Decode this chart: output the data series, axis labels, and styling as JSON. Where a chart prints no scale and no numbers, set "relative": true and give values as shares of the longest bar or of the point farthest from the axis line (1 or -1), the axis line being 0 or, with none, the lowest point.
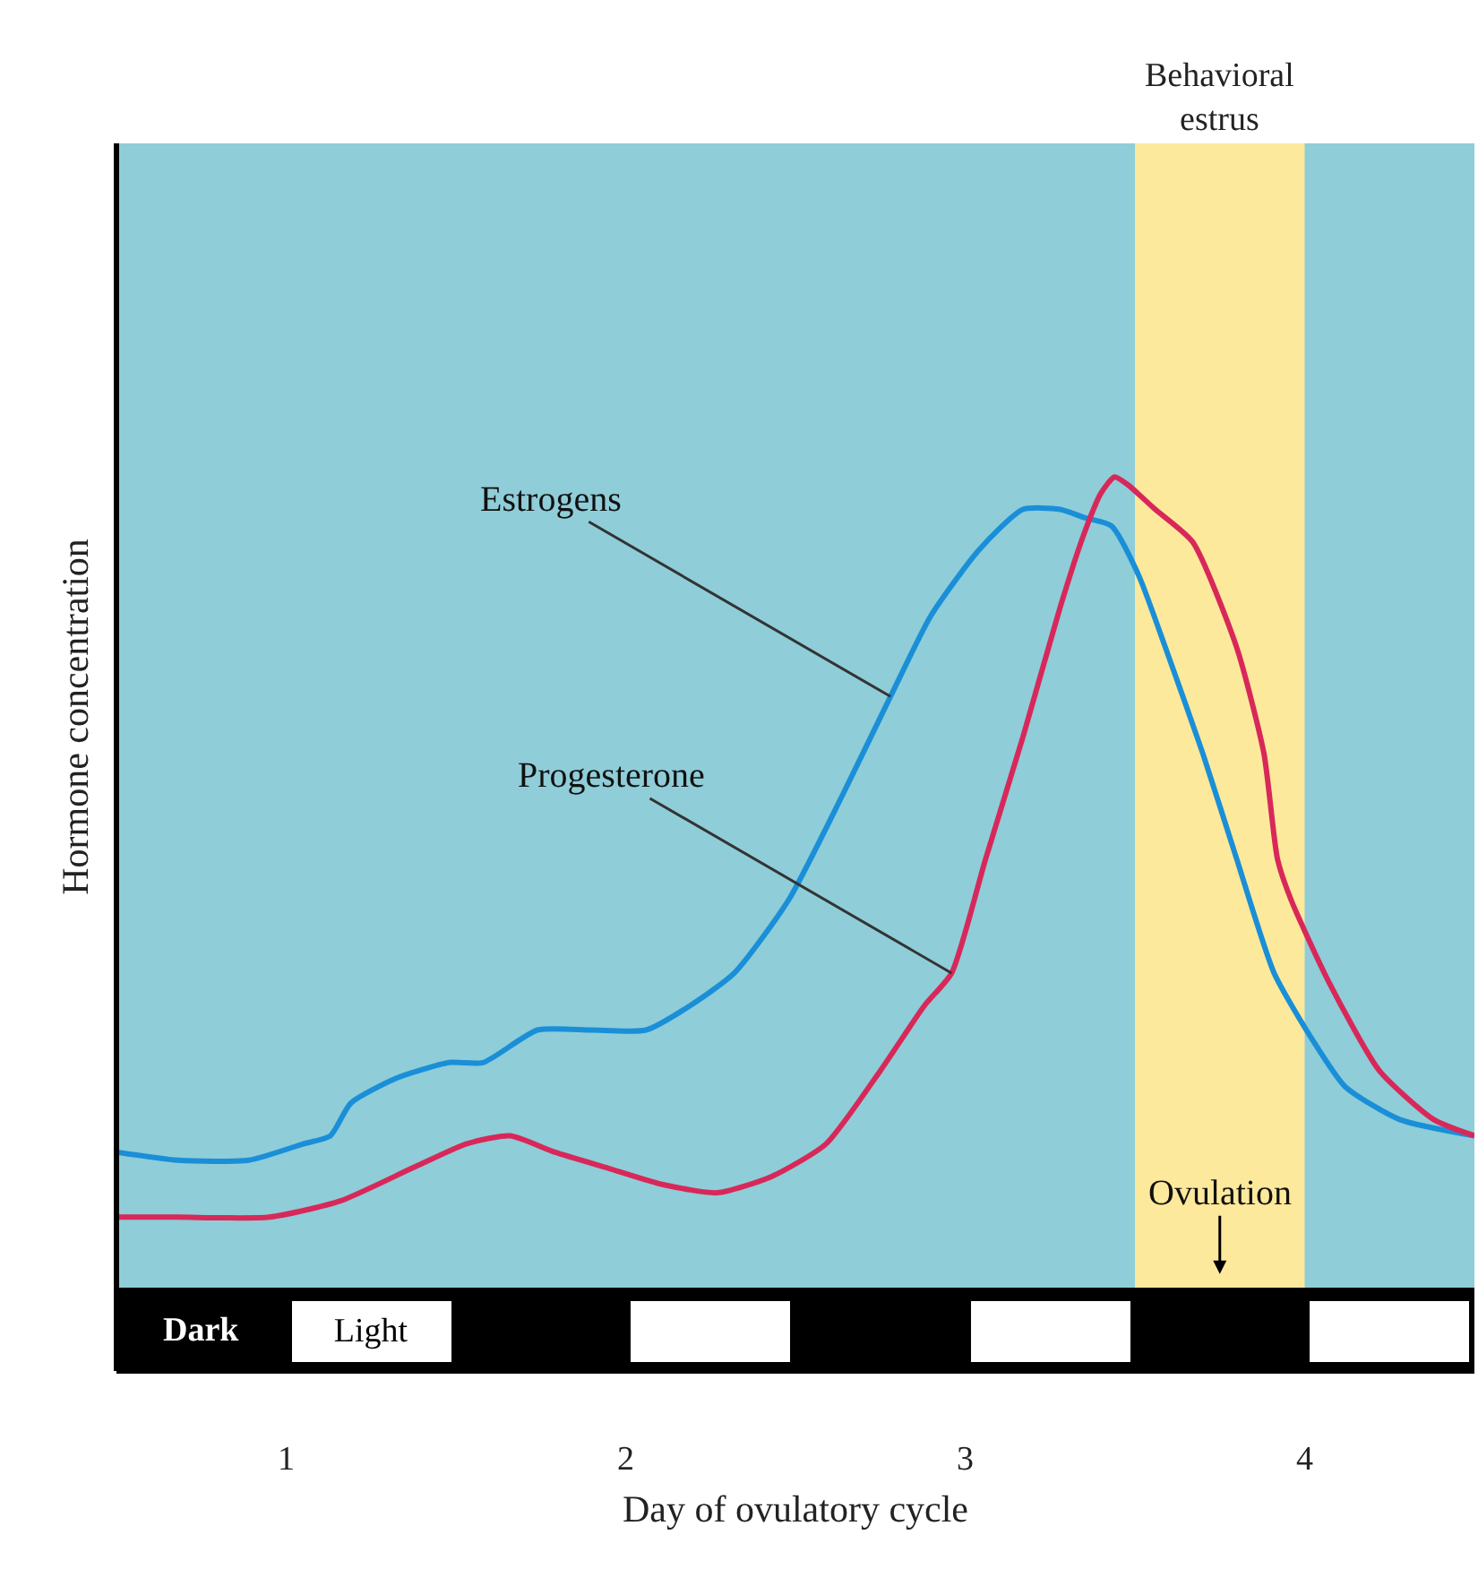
{
  "chart_data": {
    "type": "line",
    "relative": true,
    "xlabel": "Day of ovulatory cycle",
    "ylabel": "Hormone concentration",
    "xlim": [
      0.5,
      4.5
    ],
    "xticks": [
      1,
      2,
      3,
      4
    ],
    "grid": false,
    "marker": "none",
    "line_style": "solid",
    "series": [
      {
        "color": "#1a8fd8",
        "x": [
          0.5,
          0.68,
          0.89,
          1.05,
          1.13,
          1.19,
          1.32,
          1.48,
          1.58,
          1.74,
          1.9,
          2.06,
          2.19,
          2.32,
          2.48,
          2.64,
          2.78,
          2.9,
          3.04,
          3.17,
          3.28,
          3.35,
          3.43,
          3.51,
          3.59,
          3.7,
          3.8,
          3.91,
          4.02,
          4.12,
          4.28,
          4.5
        ],
        "values": [
          0.17,
          0.16,
          0.16,
          0.18,
          0.19,
          0.23,
          0.26,
          0.28,
          0.28,
          0.32,
          0.32,
          0.32,
          0.35,
          0.39,
          0.48,
          0.61,
          0.73,
          0.83,
          0.91,
          0.96,
          0.96,
          0.95,
          0.94,
          0.88,
          0.79,
          0.66,
          0.53,
          0.39,
          0.31,
          0.25,
          0.21,
          0.19
        ]
      },
      {
        "color": "#d8285a",
        "x": [
          0.5,
          0.68,
          0.95,
          1.16,
          1.37,
          1.53,
          1.66,
          1.79,
          1.95,
          2.11,
          2.27,
          2.43,
          2.59,
          2.75,
          2.88,
          2.96,
          3.06,
          3.17,
          3.28,
          3.35,
          3.4,
          3.44,
          3.48,
          3.56,
          3.67,
          3.8,
          3.88,
          3.92,
          3.96,
          4.07,
          4.22,
          4.38,
          4.5
        ],
        "values": [
          0.09,
          0.09,
          0.09,
          0.11,
          0.15,
          0.18,
          0.19,
          0.17,
          0.15,
          0.13,
          0.12,
          0.14,
          0.18,
          0.27,
          0.35,
          0.39,
          0.53,
          0.68,
          0.84,
          0.93,
          0.98,
          1.0,
          0.99,
          0.96,
          0.92,
          0.79,
          0.66,
          0.53,
          0.48,
          0.38,
          0.27,
          0.21,
          0.19
        ]
      }
    ],
    "bands": [
      {
        "axis": "x",
        "from": 3.5,
        "to": 4.0,
        "label": "Behavioral\nestrus",
        "color": "#fde99b"
      }
    ],
    "annotations": [
      {
        "text": "Estrogens",
        "x": 2.78,
        "y": 0.73
      },
      {
        "text": "Progesterone",
        "x": 2.96,
        "y": 0.39
      },
      "Dark",
      "Light",
      "Ovulation"
    ]
  }
}
